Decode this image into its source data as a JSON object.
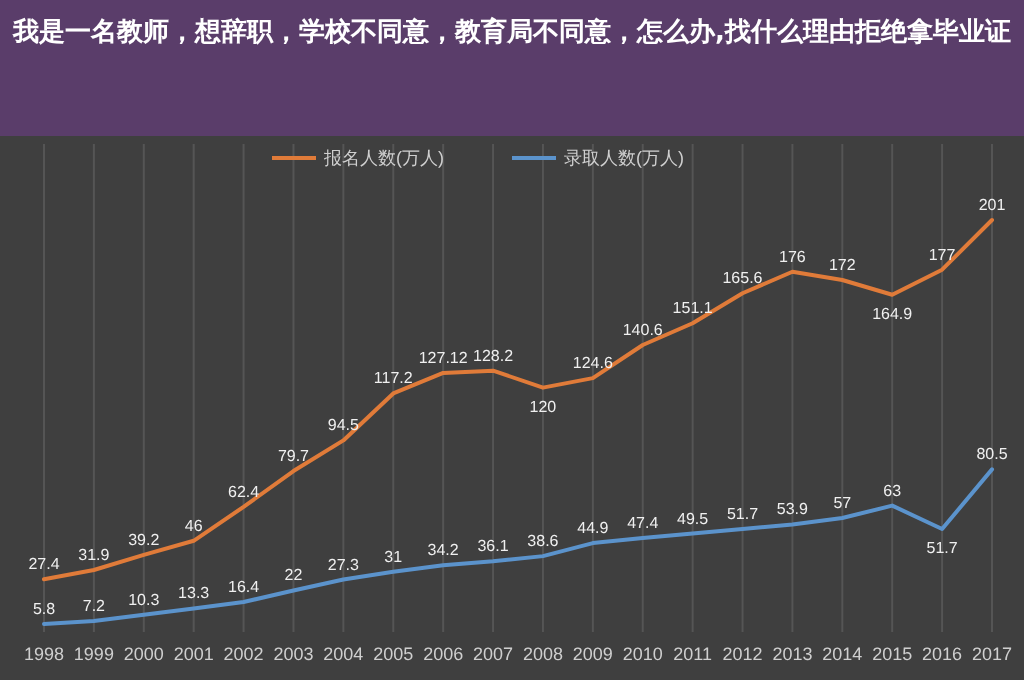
{
  "chart_data": {
    "type": "line",
    "title": "我是一名教师，想辞职，学校不同意，教育局不同意，怎么办,找什么理由拒绝拿毕业证",
    "categories": [
      "1998",
      "1999",
      "2000",
      "2001",
      "2002",
      "2003",
      "2004",
      "2005",
      "2006",
      "2007",
      "2008",
      "2009",
      "2010",
      "2011",
      "2012",
      "2013",
      "2014",
      "2015",
      "2016",
      "2017"
    ],
    "series": [
      {
        "name": "报名人数(万人)",
        "color": "#e07b39",
        "values": [
          27.4,
          31.9,
          39.2,
          46,
          62.4,
          79.7,
          94.5,
          117.2,
          127.12,
          128.2,
          120,
          124.6,
          140.6,
          151.1,
          165.6,
          176,
          172,
          164.9,
          177,
          201
        ]
      },
      {
        "name": "录取人数(万人)",
        "color": "#5b93cc",
        "values": [
          5.8,
          7.2,
          10.3,
          13.3,
          16.4,
          22,
          27.3,
          31,
          34.2,
          36.1,
          38.6,
          44.9,
          47.4,
          49.5,
          51.7,
          53.9,
          57,
          63,
          51.7,
          80.5
        ]
      }
    ],
    "grid": "x",
    "legend": "top",
    "data_labels": true
  }
}
